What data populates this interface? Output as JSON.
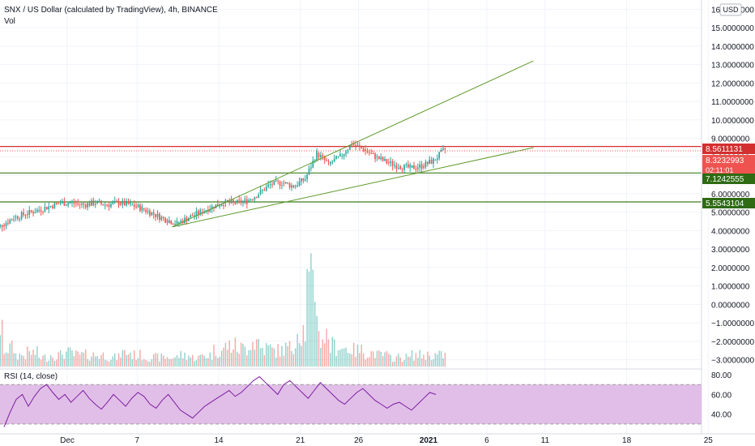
{
  "header": {
    "title": "SNX / US Dollar (calculated by TradingView), 4h, BINANCE",
    "vol_label": "Vol"
  },
  "currency_button": "USD",
  "rsi": {
    "label": "RSI (14, close)",
    "axis_ticks": [
      80,
      60,
      40
    ],
    "axis_tick_labels": [
      "80.00",
      "60.00",
      "40.00"
    ],
    "upper_band": 70,
    "lower_band": 30,
    "values": [
      27,
      42,
      55,
      60,
      48,
      58,
      66,
      70,
      62,
      55,
      60,
      52,
      58,
      64,
      56,
      50,
      45,
      52,
      60,
      54,
      48,
      56,
      62,
      58,
      50,
      46,
      54,
      60,
      52,
      44,
      40,
      36,
      42,
      48,
      52,
      56,
      60,
      64,
      58,
      62,
      68,
      74,
      78,
      72,
      66,
      60,
      70,
      74,
      68,
      62,
      56,
      64,
      72,
      66,
      60,
      54,
      50,
      56,
      62,
      66,
      60,
      54,
      50,
      46,
      50,
      52,
      48,
      44,
      50,
      56,
      62,
      60
    ]
  },
  "price_axis": {
    "ticks": [
      16,
      15,
      14,
      13,
      12,
      11,
      10,
      9,
      8,
      7,
      6,
      5,
      4,
      3,
      2,
      1,
      0,
      -1,
      -2,
      -3
    ],
    "tick_labels": [
      "16.0000000",
      "15.0000000",
      "14.0000000",
      "13.0000000",
      "12.0000000",
      "11.0000000",
      "10.0000000",
      "9.0000000",
      "8.0000000",
      "7.0000000",
      "6.0000000",
      "5.0000000",
      "4.0000000",
      "3.0000000",
      "2.0000000",
      "1.0000000",
      "0.0000000",
      "−1.0000000",
      "−2.0000000",
      "−3.0000000"
    ]
  },
  "price_labels": {
    "resistance": "8.5611131",
    "current": "8.3232993",
    "countdown": "02:11:01",
    "support1": "7.1242555",
    "support2": "5.5543104"
  },
  "colors": {
    "up": "#26a69a",
    "down": "#ef5350",
    "resistance_line": "#d32f2f",
    "support_line": "#3d7d1e",
    "trend_line": "#5f9a2c",
    "rsi_line": "#7b1fa2",
    "rsi_band": "#e1bee7"
  },
  "chart_data": {
    "type": "candlestick",
    "title": "SNX / US Dollar (calculated by TradingView), 4h, BINANCE",
    "x_tick_labels": [
      "Dec",
      "7",
      "14",
      "21",
      "26",
      "2021",
      "6",
      "11",
      "18",
      "25"
    ],
    "x_tick_dates": [
      "2020-12-01",
      "2020-12-07",
      "2020-12-14",
      "2020-12-21",
      "2020-12-26",
      "2021-01-01",
      "2021-01-06",
      "2021-01-11",
      "2021-01-18",
      "2021-01-25"
    ],
    "y_range": [
      -3.5,
      16.5
    ],
    "horizontal_levels": [
      {
        "value": 8.5611131,
        "color": "#d32f2f"
      },
      {
        "value": 7.1242555,
        "color": "#3d7d1e"
      },
      {
        "value": 5.5543104,
        "color": "#3d7d1e"
      }
    ],
    "current_price": 8.3232993,
    "trend_lines": [
      {
        "start": [
          "2020-12-10",
          4.2
        ],
        "end": [
          "2021-01-10",
          13.2
        ]
      },
      {
        "start": [
          "2020-12-10",
          4.2
        ],
        "end": [
          "2021-01-10",
          8.5
        ]
      }
    ],
    "candle_dates": [
      "2020-11-25",
      "2020-11-26",
      "2020-11-27",
      "2020-11-28",
      "2020-11-29",
      "2020-11-30",
      "2020-12-01",
      "2020-12-02",
      "2020-12-03",
      "2020-12-04",
      "2020-12-05",
      "2020-12-06",
      "2020-12-07",
      "2020-12-08",
      "2020-12-09",
      "2020-12-10",
      "2020-12-11",
      "2020-12-12",
      "2020-12-13",
      "2020-12-14",
      "2020-12-15",
      "2020-12-16",
      "2020-12-17",
      "2020-12-18",
      "2020-12-19",
      "2020-12-20",
      "2020-12-21",
      "2020-12-22",
      "2020-12-23",
      "2020-12-24",
      "2020-12-25",
      "2020-12-26",
      "2020-12-27",
      "2020-12-28",
      "2020-12-29",
      "2020-12-30",
      "2020-12-31",
      "2021-01-01",
      "2021-01-02"
    ],
    "close": [
      4.3,
      4.7,
      4.9,
      5.1,
      5.3,
      5.5,
      5.5,
      5.4,
      5.5,
      5.4,
      5.5,
      5.4,
      5.2,
      4.9,
      4.6,
      4.4,
      4.7,
      5.0,
      5.3,
      5.5,
      5.5,
      5.6,
      6.0,
      6.5,
      6.6,
      6.4,
      6.8,
      8.2,
      7.6,
      8.0,
      8.7,
      8.4,
      8.0,
      7.7,
      7.5,
      7.4,
      7.5,
      7.8,
      8.4
    ],
    "volume": [
      1.4,
      0.8,
      0.5,
      0.6,
      0.4,
      0.5,
      0.6,
      0.5,
      0.5,
      0.5,
      0.4,
      0.6,
      0.5,
      0.4,
      0.4,
      0.4,
      0.5,
      0.4,
      0.5,
      0.7,
      0.9,
      0.8,
      1.1,
      0.8,
      0.7,
      0.8,
      1.6,
      3.4,
      1.3,
      0.9,
      0.8,
      0.7,
      0.6,
      0.5,
      0.4,
      0.4,
      0.5,
      0.5,
      0.5
    ]
  }
}
